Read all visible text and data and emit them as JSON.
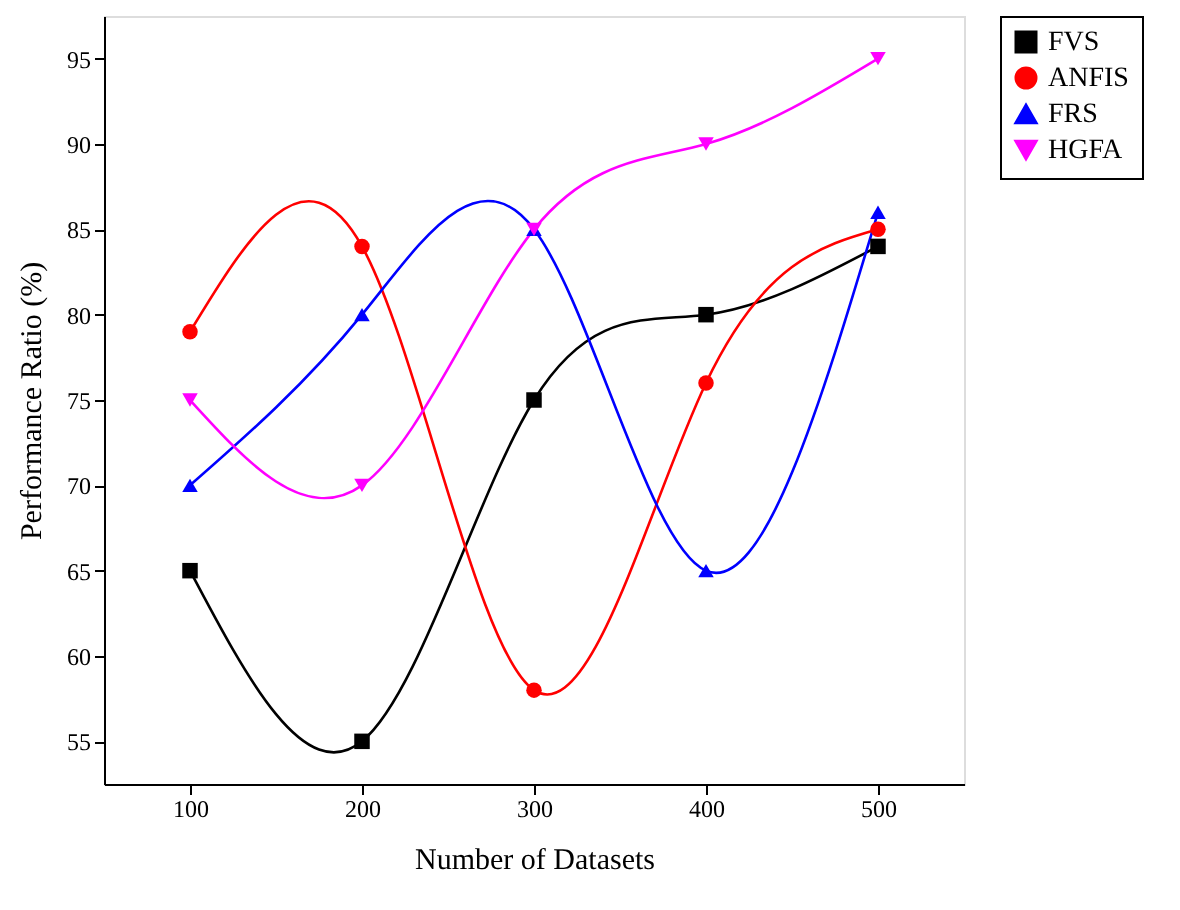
{
  "chart_data": {
    "type": "line",
    "xlabel": "Number of Datasets",
    "ylabel": "Performance Ratio (%)",
    "x": [
      100,
      200,
      300,
      400,
      500
    ],
    "xlim": [
      50,
      550
    ],
    "xticks": [
      100,
      200,
      300,
      400,
      500
    ],
    "ylim": [
      52.5,
      97.5
    ],
    "yticks": [
      55,
      60,
      65,
      70,
      75,
      80,
      85,
      90,
      95
    ],
    "grid": false,
    "legend": "top right",
    "line_style": "solid",
    "series": [
      {
        "name": "FVS",
        "color": "#000000",
        "marker": "square",
        "values": [
          65,
          55,
          75,
          80,
          84
        ]
      },
      {
        "name": "ANFIS",
        "color": "#ff0000",
        "marker": "circle",
        "values": [
          79,
          84,
          58,
          76,
          85
        ]
      },
      {
        "name": "FRS",
        "color": "#0000ff",
        "marker": "triangle",
        "values": [
          70,
          80,
          85,
          65,
          86
        ]
      },
      {
        "name": "HGFA",
        "color": "#ff00ff",
        "marker": "triangle-down",
        "values": [
          75,
          70,
          85,
          90,
          95
        ]
      }
    ]
  }
}
